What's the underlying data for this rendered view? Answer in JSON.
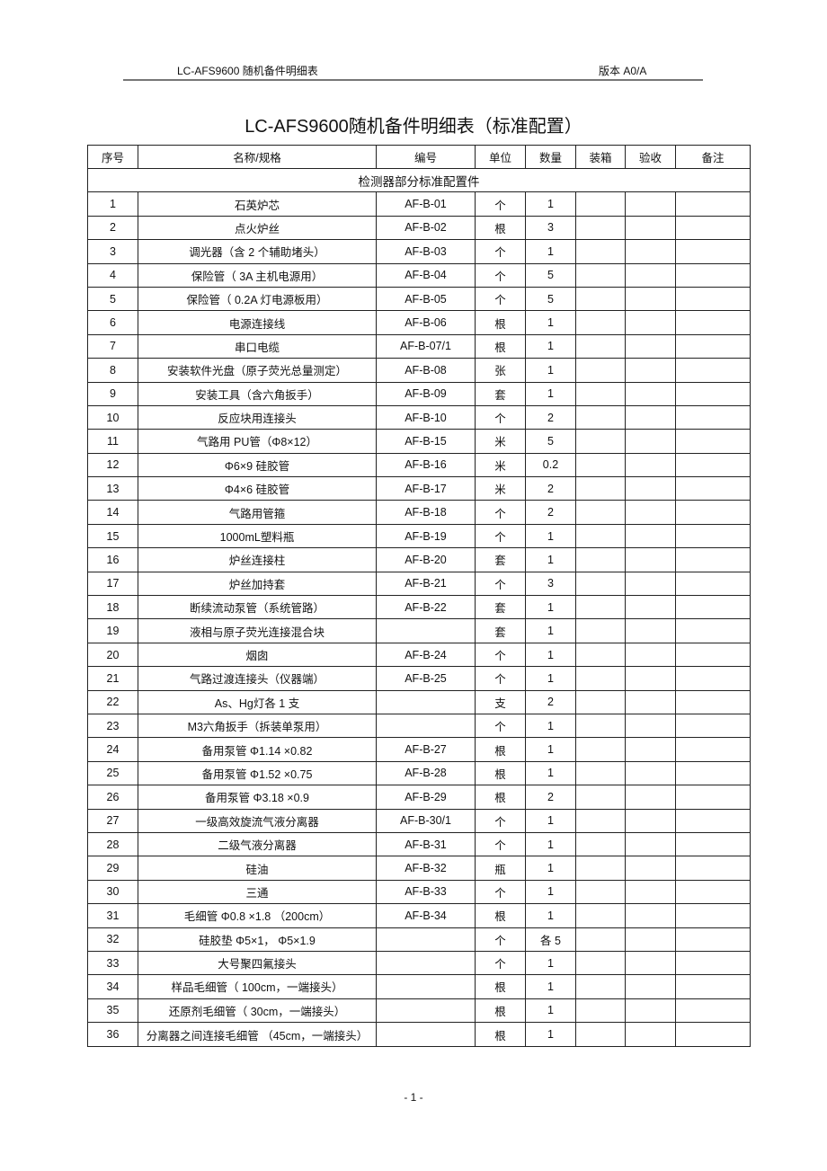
{
  "header": {
    "left": "LC-AFS9600  随机备件明细表",
    "right": "版本  A0/A"
  },
  "title": "LC-AFS9600随机备件明细表（标准配置）",
  "columns": [
    "序号",
    "名称/规格",
    "编号",
    "单位",
    "数量",
    "装箱",
    "验收",
    "备注"
  ],
  "section": "检测器部分标准配置件",
  "rows": [
    [
      "1",
      "石英炉芯",
      "AF-B-01",
      "个",
      "1"
    ],
    [
      "2",
      "点火炉丝",
      "AF-B-02",
      "根",
      "3"
    ],
    [
      "3",
      "调光器（含  2 个辅助堵头）",
      "AF-B-03",
      "个",
      "1"
    ],
    [
      "4",
      "保险管（  3A 主机电源用）",
      "AF-B-04",
      "个",
      "5"
    ],
    [
      "5",
      "保险管（  0.2A  灯电源板用）",
      "AF-B-05",
      "个",
      "5"
    ],
    [
      "6",
      "电源连接线",
      "AF-B-06",
      "根",
      "1"
    ],
    [
      "7",
      "串口电缆",
      "AF-B-07/1",
      "根",
      "1"
    ],
    [
      "8",
      "安装软件光盘（原子荧光总量测定）",
      "AF-B-08",
      "张",
      "1"
    ],
    [
      "9",
      "安装工具（含六角扳手）",
      "AF-B-09",
      "套",
      "1"
    ],
    [
      "10",
      "反应块用连接头",
      "AF-B-10",
      "个",
      "2"
    ],
    [
      "11",
      "气路用  PU管（Φ8×12）",
      "AF-B-15",
      "米",
      "5"
    ],
    [
      "12",
      "Φ6×9 硅胶管",
      "AF-B-16",
      "米",
      "0.2"
    ],
    [
      "13",
      "Φ4×6 硅胶管",
      "AF-B-17",
      "米",
      "2"
    ],
    [
      "14",
      "气路用管箍",
      "AF-B-18",
      "个",
      "2"
    ],
    [
      "15",
      "1000mL塑料瓶",
      "AF-B-19",
      "个",
      "1"
    ],
    [
      "16",
      "炉丝连接柱",
      "AF-B-20",
      "套",
      "1"
    ],
    [
      "17",
      "炉丝加持套",
      "AF-B-21",
      "个",
      "3"
    ],
    [
      "18",
      "断续流动泵管（系统管路）",
      "AF-B-22",
      "套",
      "1"
    ],
    [
      "19",
      "液相与原子荧光连接混合块",
      "",
      "套",
      "1"
    ],
    [
      "20",
      "烟囱",
      "AF-B-24",
      "个",
      "1"
    ],
    [
      "21",
      "气路过渡连接头（仪器端）",
      "AF-B-25",
      "个",
      "1"
    ],
    [
      "22",
      "As、Hg灯各  1 支",
      "",
      "支",
      "2"
    ],
    [
      "23",
      "M3六角扳手（拆装单泵用）",
      "",
      "个",
      "1"
    ],
    [
      "24",
      "备用泵管   Φ1.14 ×0.82",
      "AF-B-27",
      "根",
      "1"
    ],
    [
      "25",
      "备用泵管   Φ1.52 ×0.75",
      "AF-B-28",
      "根",
      "1"
    ],
    [
      "26",
      "备用泵管   Φ3.18 ×0.9",
      "AF-B-29",
      "根",
      "2"
    ],
    [
      "27",
      "一级高效旋流气液分离器",
      "AF-B-30/1",
      "个",
      "1"
    ],
    [
      "28",
      "二级气液分离器",
      "AF-B-31",
      "个",
      "1"
    ],
    [
      "29",
      "硅油",
      "AF-B-32",
      "瓶",
      "1"
    ],
    [
      "30",
      "三通",
      "AF-B-33",
      "个",
      "1"
    ],
    [
      "31",
      "毛细管   Φ0.8 ×1.8 （200cm）",
      "AF-B-34",
      "根",
      "1"
    ],
    [
      "32",
      "硅胶垫  Φ5×1，  Φ5×1.9",
      "",
      "个",
      "各 5"
    ],
    [
      "33",
      "大号聚四氟接头",
      "",
      "个",
      "1"
    ],
    [
      "34",
      "样品毛细管（   100cm，一端接头）",
      "",
      "根",
      "1"
    ],
    [
      "35",
      "还原剂毛细管（   30cm，一端接头）",
      "",
      "根",
      "1"
    ],
    [
      "36",
      "分离器之间连接毛细管   （45cm，一端接头）",
      "",
      "根",
      "1"
    ]
  ],
  "footer": "- 1 -"
}
